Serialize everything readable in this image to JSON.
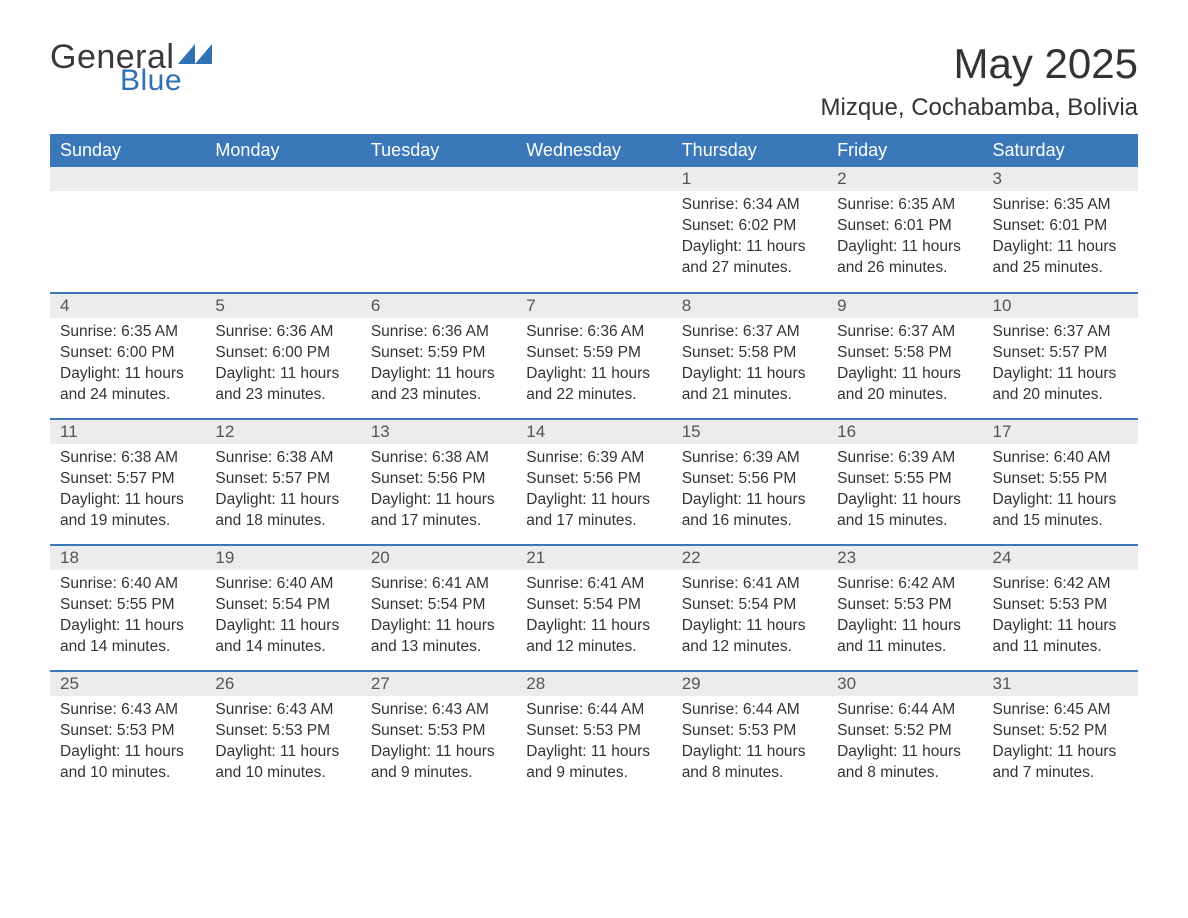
{
  "logo": {
    "text1": "General",
    "text2": "Blue"
  },
  "title": "May 2025",
  "location": "Mizque, Cochabamba, Bolivia",
  "colors": {
    "header_bg": "#3a78b9",
    "header_text": "#ffffff",
    "daynum_bg": "#ececec",
    "border": "#3a78b9",
    "logo_blue": "#2f71b3",
    "text": "#333333",
    "page_bg": "#ffffff"
  },
  "day_headers": [
    "Sunday",
    "Monday",
    "Tuesday",
    "Wednesday",
    "Thursday",
    "Friday",
    "Saturday"
  ],
  "weeks": [
    [
      {
        "n": "",
        "sunrise": "",
        "sunset": "",
        "daylight": ""
      },
      {
        "n": "",
        "sunrise": "",
        "sunset": "",
        "daylight": ""
      },
      {
        "n": "",
        "sunrise": "",
        "sunset": "",
        "daylight": ""
      },
      {
        "n": "",
        "sunrise": "",
        "sunset": "",
        "daylight": ""
      },
      {
        "n": "1",
        "sunrise": "Sunrise: 6:34 AM",
        "sunset": "Sunset: 6:02 PM",
        "daylight": "Daylight: 11 hours and 27 minutes."
      },
      {
        "n": "2",
        "sunrise": "Sunrise: 6:35 AM",
        "sunset": "Sunset: 6:01 PM",
        "daylight": "Daylight: 11 hours and 26 minutes."
      },
      {
        "n": "3",
        "sunrise": "Sunrise: 6:35 AM",
        "sunset": "Sunset: 6:01 PM",
        "daylight": "Daylight: 11 hours and 25 minutes."
      }
    ],
    [
      {
        "n": "4",
        "sunrise": "Sunrise: 6:35 AM",
        "sunset": "Sunset: 6:00 PM",
        "daylight": "Daylight: 11 hours and 24 minutes."
      },
      {
        "n": "5",
        "sunrise": "Sunrise: 6:36 AM",
        "sunset": "Sunset: 6:00 PM",
        "daylight": "Daylight: 11 hours and 23 minutes."
      },
      {
        "n": "6",
        "sunrise": "Sunrise: 6:36 AM",
        "sunset": "Sunset: 5:59 PM",
        "daylight": "Daylight: 11 hours and 23 minutes."
      },
      {
        "n": "7",
        "sunrise": "Sunrise: 6:36 AM",
        "sunset": "Sunset: 5:59 PM",
        "daylight": "Daylight: 11 hours and 22 minutes."
      },
      {
        "n": "8",
        "sunrise": "Sunrise: 6:37 AM",
        "sunset": "Sunset: 5:58 PM",
        "daylight": "Daylight: 11 hours and 21 minutes."
      },
      {
        "n": "9",
        "sunrise": "Sunrise: 6:37 AM",
        "sunset": "Sunset: 5:58 PM",
        "daylight": "Daylight: 11 hours and 20 minutes."
      },
      {
        "n": "10",
        "sunrise": "Sunrise: 6:37 AM",
        "sunset": "Sunset: 5:57 PM",
        "daylight": "Daylight: 11 hours and 20 minutes."
      }
    ],
    [
      {
        "n": "11",
        "sunrise": "Sunrise: 6:38 AM",
        "sunset": "Sunset: 5:57 PM",
        "daylight": "Daylight: 11 hours and 19 minutes."
      },
      {
        "n": "12",
        "sunrise": "Sunrise: 6:38 AM",
        "sunset": "Sunset: 5:57 PM",
        "daylight": "Daylight: 11 hours and 18 minutes."
      },
      {
        "n": "13",
        "sunrise": "Sunrise: 6:38 AM",
        "sunset": "Sunset: 5:56 PM",
        "daylight": "Daylight: 11 hours and 17 minutes."
      },
      {
        "n": "14",
        "sunrise": "Sunrise: 6:39 AM",
        "sunset": "Sunset: 5:56 PM",
        "daylight": "Daylight: 11 hours and 17 minutes."
      },
      {
        "n": "15",
        "sunrise": "Sunrise: 6:39 AM",
        "sunset": "Sunset: 5:56 PM",
        "daylight": "Daylight: 11 hours and 16 minutes."
      },
      {
        "n": "16",
        "sunrise": "Sunrise: 6:39 AM",
        "sunset": "Sunset: 5:55 PM",
        "daylight": "Daylight: 11 hours and 15 minutes."
      },
      {
        "n": "17",
        "sunrise": "Sunrise: 6:40 AM",
        "sunset": "Sunset: 5:55 PM",
        "daylight": "Daylight: 11 hours and 15 minutes."
      }
    ],
    [
      {
        "n": "18",
        "sunrise": "Sunrise: 6:40 AM",
        "sunset": "Sunset: 5:55 PM",
        "daylight": "Daylight: 11 hours and 14 minutes."
      },
      {
        "n": "19",
        "sunrise": "Sunrise: 6:40 AM",
        "sunset": "Sunset: 5:54 PM",
        "daylight": "Daylight: 11 hours and 14 minutes."
      },
      {
        "n": "20",
        "sunrise": "Sunrise: 6:41 AM",
        "sunset": "Sunset: 5:54 PM",
        "daylight": "Daylight: 11 hours and 13 minutes."
      },
      {
        "n": "21",
        "sunrise": "Sunrise: 6:41 AM",
        "sunset": "Sunset: 5:54 PM",
        "daylight": "Daylight: 11 hours and 12 minutes."
      },
      {
        "n": "22",
        "sunrise": "Sunrise: 6:41 AM",
        "sunset": "Sunset: 5:54 PM",
        "daylight": "Daylight: 11 hours and 12 minutes."
      },
      {
        "n": "23",
        "sunrise": "Sunrise: 6:42 AM",
        "sunset": "Sunset: 5:53 PM",
        "daylight": "Daylight: 11 hours and 11 minutes."
      },
      {
        "n": "24",
        "sunrise": "Sunrise: 6:42 AM",
        "sunset": "Sunset: 5:53 PM",
        "daylight": "Daylight: 11 hours and 11 minutes."
      }
    ],
    [
      {
        "n": "25",
        "sunrise": "Sunrise: 6:43 AM",
        "sunset": "Sunset: 5:53 PM",
        "daylight": "Daylight: 11 hours and 10 minutes."
      },
      {
        "n": "26",
        "sunrise": "Sunrise: 6:43 AM",
        "sunset": "Sunset: 5:53 PM",
        "daylight": "Daylight: 11 hours and 10 minutes."
      },
      {
        "n": "27",
        "sunrise": "Sunrise: 6:43 AM",
        "sunset": "Sunset: 5:53 PM",
        "daylight": "Daylight: 11 hours and 9 minutes."
      },
      {
        "n": "28",
        "sunrise": "Sunrise: 6:44 AM",
        "sunset": "Sunset: 5:53 PM",
        "daylight": "Daylight: 11 hours and 9 minutes."
      },
      {
        "n": "29",
        "sunrise": "Sunrise: 6:44 AM",
        "sunset": "Sunset: 5:53 PM",
        "daylight": "Daylight: 11 hours and 8 minutes."
      },
      {
        "n": "30",
        "sunrise": "Sunrise: 6:44 AM",
        "sunset": "Sunset: 5:52 PM",
        "daylight": "Daylight: 11 hours and 8 minutes."
      },
      {
        "n": "31",
        "sunrise": "Sunrise: 6:45 AM",
        "sunset": "Sunset: 5:52 PM",
        "daylight": "Daylight: 11 hours and 7 minutes."
      }
    ]
  ]
}
